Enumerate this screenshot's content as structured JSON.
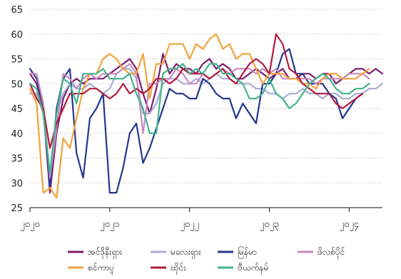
{
  "chart_data": {
    "type": "line",
    "title": "",
    "xlabel": "",
    "ylabel": "",
    "ylim": [
      25,
      65
    ],
    "y_ticks": [
      25,
      30,
      35,
      40,
      45,
      50,
      55,
      60,
      65
    ],
    "x_ticks": [
      {
        "index": 0,
        "label": "၂၀၂၀"
      },
      {
        "index": 12,
        "label": "၂၀၂၁"
      },
      {
        "index": 24,
        "label": "၂၀၂၂"
      },
      {
        "index": 36,
        "label": "၂၀၂၃"
      },
      {
        "index": 48,
        "label": "၂၀၂၄"
      }
    ],
    "grid": "horizontal",
    "legend_position": "bottom",
    "series": [
      {
        "name": "အင်ဒိုနီးရှား",
        "color": "#7b1d6f",
        "values": [
          52,
          50,
          45,
          28,
          40,
          47,
          50,
          51,
          50,
          51,
          51,
          51,
          52,
          53,
          54,
          55,
          53,
          48,
          44,
          49,
          56,
          52,
          54,
          53,
          53,
          52,
          54,
          55,
          53,
          54,
          53,
          51,
          51,
          52,
          53,
          52,
          51,
          52,
          53,
          51,
          51,
          52,
          52,
          51,
          52,
          52,
          50,
          51,
          52,
          53,
          53,
          52,
          53,
          52
        ]
      },
      {
        "name": "မလေးရှား",
        "color": "#a9add6",
        "values": [
          48,
          48,
          44,
          31,
          44,
          48,
          50,
          49,
          49,
          50,
          49,
          48,
          49,
          52,
          53,
          53,
          51,
          44,
          44,
          46,
          50,
          51,
          51,
          50,
          50,
          51,
          50,
          51,
          52,
          51,
          51,
          50,
          50,
          50,
          49,
          49,
          48,
          48,
          47,
          48,
          48,
          49,
          48,
          48,
          47,
          48,
          48,
          47,
          47,
          48,
          48,
          49,
          49,
          50
        ]
      },
      {
        "name": "မြန်မာ",
        "color": "#24378f",
        "values": [
          53,
          51,
          46,
          29,
          45,
          51,
          53,
          36,
          31,
          43,
          45,
          48,
          28,
          28,
          33,
          40,
          42,
          34,
          37,
          41,
          45,
          49,
          48,
          48,
          47,
          47,
          51,
          50,
          48,
          47,
          47,
          43,
          46,
          44,
          42,
          50,
          50,
          52,
          56,
          57,
          52,
          52,
          50,
          50,
          50,
          48,
          47,
          43,
          45,
          47,
          48
        ]
      },
      {
        "name": "ဖိလစ်ပိုင်",
        "color": "#c889c0",
        "values": [
          52,
          52,
          46,
          31,
          41,
          52,
          51,
          49,
          51,
          52,
          51,
          52,
          52,
          52,
          53,
          54,
          52,
          40,
          50,
          50,
          51,
          51,
          53,
          52,
          50,
          50,
          52,
          51,
          52,
          53,
          52,
          53,
          53,
          53,
          52,
          53,
          52,
          53,
          51,
          51,
          51,
          51,
          51,
          50,
          51,
          51,
          51,
          51,
          52,
          52,
          52,
          51
        ]
      },
      {
        "name": "စင်ကာပူ",
        "color": "#f4a23c",
        "values": [
          49,
          46,
          28,
          29,
          27,
          39,
          37,
          43,
          49,
          52,
          52,
          55,
          56,
          55,
          53,
          52,
          52,
          56,
          47,
          54,
          54,
          58,
          58,
          58,
          55,
          58,
          57,
          59,
          60,
          57,
          58,
          55,
          56,
          56,
          53,
          50,
          52,
          52,
          52,
          51,
          51,
          50,
          50,
          49,
          51,
          52,
          52,
          51,
          51,
          51,
          52,
          53
        ]
      },
      {
        "name": "ထိုင်း",
        "color": "#b21b3c",
        "values": [
          50,
          47,
          45,
          37,
          42,
          45,
          48,
          48,
          48,
          49,
          49,
          48,
          47,
          48,
          50,
          48,
          49,
          48,
          49,
          51,
          51,
          50,
          51,
          53,
          52,
          52,
          52,
          51,
          52,
          53,
          51,
          50,
          52,
          54,
          55,
          54,
          52,
          60,
          58,
          53,
          52,
          50,
          49,
          48,
          48,
          48,
          46,
          45,
          46,
          47,
          48
        ]
      },
      {
        "name": "ဗီယက်နမ်",
        "color": "#44b48d",
        "values": [
          50,
          49,
          44,
          32,
          44,
          51,
          50,
          46,
          52,
          52,
          52,
          53,
          51,
          51,
          51,
          52,
          48,
          45,
          40,
          40,
          52,
          53,
          53,
          54,
          52,
          53,
          52,
          54,
          54,
          52,
          52,
          51,
          50,
          47,
          47,
          48,
          51,
          48,
          47,
          45,
          46,
          48,
          50,
          51,
          52,
          51,
          49,
          48,
          48,
          49,
          49,
          50
        ]
      }
    ]
  }
}
